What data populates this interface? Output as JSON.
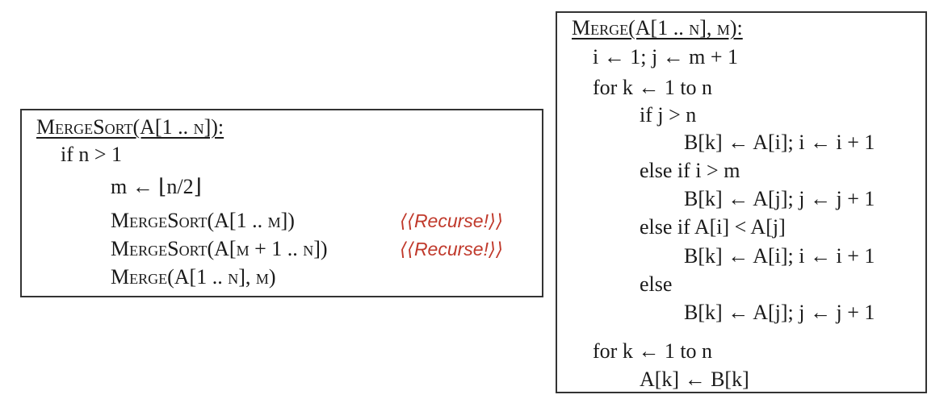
{
  "mergesort": {
    "title": "MergeSort(A[1 .. n]):",
    "lines": [
      "if n > 1",
      "m ← ⌊n/2⌋",
      "MergeSort(A[1 .. m])",
      "MergeSort(A[m + 1 .. n])",
      "Merge(A[1 .. n], m)"
    ],
    "comments": [
      "⟨⟨Recurse!⟩⟩",
      "⟨⟨Recurse!⟩⟩"
    ]
  },
  "merge": {
    "title": "Merge(A[1 .. n], m):",
    "lines": [
      "i ← 1;  j ← m + 1",
      "for k ← 1 to n",
      "if j > n",
      "B[k] ← A[i];  i ← i + 1",
      "else if i > m",
      "B[k] ← A[j];  j ← j + 1",
      "else if A[i] < A[j]",
      "B[k] ← A[i];  i ← i + 1",
      "else",
      "B[k] ← A[j];  j ← j + 1",
      "for k ← 1 to n",
      "A[k] ← B[k]"
    ]
  },
  "colors": {
    "comment": "#c0392b",
    "border": "#333333"
  }
}
